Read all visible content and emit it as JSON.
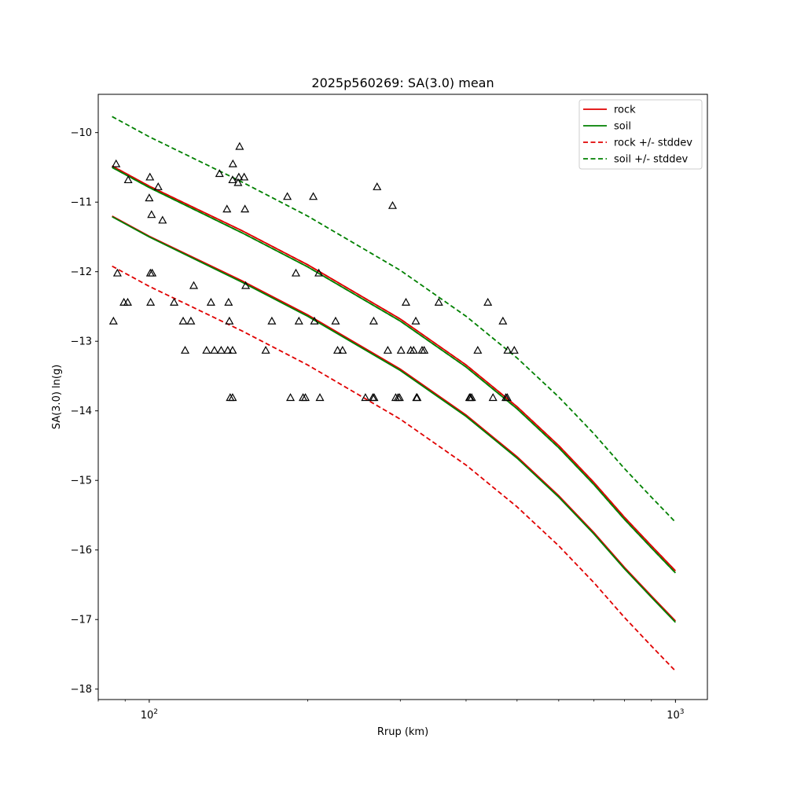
{
  "chart_data": {
    "type": "scatter",
    "title": "2025p560269: SA(3.0) mean",
    "xlabel": "Rrup (km)",
    "ylabel": "SA(3.0) ln(g)",
    "xscale": "log",
    "xlim": [
      80,
      1150
    ],
    "ylim": [
      -18.15,
      -9.45
    ],
    "yticks": [
      -10,
      -11,
      -12,
      -13,
      -14,
      -15,
      -16,
      -17,
      -18
    ],
    "xticks_major": [
      {
        "value": 100,
        "base": "10",
        "exp": "2"
      },
      {
        "value": 1000,
        "base": "10",
        "exp": "3"
      }
    ],
    "legend_position": "upper right",
    "colors": {
      "rock": "#e00000",
      "soil": "#008000",
      "points": "#000000"
    },
    "curves": [
      {
        "label": "rock",
        "style": "solid",
        "color": "#e00000",
        "x": [
          85,
          100,
          150,
          200,
          300,
          400,
          500,
          600,
          700,
          800,
          900,
          1000
        ],
        "y": [
          -11.2,
          -11.49,
          -12.13,
          -12.62,
          -13.4,
          -14.06,
          -14.66,
          -15.22,
          -15.75,
          -16.25,
          -16.66,
          -17.02
        ]
      },
      {
        "label": "soil",
        "style": "solid",
        "color": "#008000",
        "x": [
          85,
          100,
          150,
          200,
          300,
          400,
          500,
          600,
          700,
          800,
          900,
          1000
        ],
        "y": [
          -11.21,
          -11.5,
          -12.15,
          -12.64,
          -13.42,
          -14.08,
          -14.68,
          -15.24,
          -15.77,
          -16.27,
          -16.68,
          -17.04
        ]
      },
      {
        "label": "rock +/- stddev",
        "style": "dashed",
        "color": "#e00000",
        "x": [
          85,
          100,
          150,
          200,
          300,
          400,
          500,
          600,
          700,
          800,
          900,
          1000
        ],
        "y": [
          -10.48,
          -10.77,
          -11.41,
          -11.9,
          -12.68,
          -13.34,
          -13.94,
          -14.5,
          -15.03,
          -15.53,
          -15.94,
          -16.3
        ]
      },
      {
        "label": "",
        "style": "dashed",
        "color": "#e00000",
        "x": [
          85,
          100,
          150,
          200,
          300,
          400,
          500,
          600,
          700,
          800,
          900,
          1000
        ],
        "y": [
          -11.92,
          -12.21,
          -12.85,
          -13.34,
          -14.12,
          -14.78,
          -15.38,
          -15.94,
          -16.47,
          -16.97,
          -17.38,
          -17.74
        ]
      },
      {
        "label": "soil +/- stddev",
        "style": "dashed",
        "color": "#008000",
        "x": [
          85,
          100,
          150,
          200,
          300,
          400,
          500,
          600,
          700,
          800,
          900,
          1000
        ],
        "y": [
          -9.77,
          -10.06,
          -10.71,
          -11.2,
          -11.98,
          -12.64,
          -13.24,
          -13.8,
          -14.33,
          -14.83,
          -15.24,
          -15.6
        ]
      },
      {
        "label": "",
        "style": "dashed",
        "color": "#008000",
        "x": [
          85,
          100,
          150,
          200,
          300,
          400,
          500,
          600,
          700,
          800,
          900,
          1000
        ],
        "y": [
          -10.5,
          -10.79,
          -11.44,
          -11.93,
          -12.71,
          -13.37,
          -13.97,
          -14.53,
          -15.06,
          -15.56,
          -15.97,
          -16.33
        ]
      },
      {
        "label": "",
        "style": "solid",
        "color": "#e00000",
        "x": [
          85,
          100,
          150,
          200,
          300,
          400,
          500,
          600,
          700,
          800,
          900,
          1000
        ],
        "y": [
          -10.48,
          -10.77,
          -11.41,
          -11.9,
          -12.68,
          -13.34,
          -13.94,
          -14.5,
          -15.03,
          -15.53,
          -15.94,
          -16.3
        ]
      },
      {
        "label": "",
        "style": "solid",
        "color": "#008000",
        "x": [
          85,
          100,
          150,
          200,
          300,
          400,
          500,
          600,
          700,
          800,
          900,
          1000
        ],
        "y": [
          -10.5,
          -10.79,
          -11.44,
          -11.93,
          -12.71,
          -13.37,
          -13.97,
          -14.53,
          -15.06,
          -15.56,
          -15.97,
          -16.33
        ]
      }
    ],
    "legend": [
      {
        "label": "rock",
        "color": "#e00000",
        "style": "solid"
      },
      {
        "label": "soil",
        "color": "#008000",
        "style": "solid"
      },
      {
        "label": "rock +/- stddev",
        "color": "#e00000",
        "style": "dashed"
      },
      {
        "label": "soil +/- stddev",
        "color": "#008000",
        "style": "dashed"
      }
    ],
    "points": [
      [
        85.5,
        -12.71
      ],
      [
        86.5,
        -10.45
      ],
      [
        87,
        -12.02
      ],
      [
        89.5,
        -12.44
      ],
      [
        91,
        -12.44
      ],
      [
        91.2,
        -10.68
      ],
      [
        100,
        -10.94
      ],
      [
        100.3,
        -10.64
      ],
      [
        100.5,
        -12.02
      ],
      [
        100.6,
        -12.44
      ],
      [
        101,
        -11.18
      ],
      [
        101.3,
        -12.02
      ],
      [
        104,
        -10.78
      ],
      [
        106,
        -11.26
      ],
      [
        111.5,
        -12.44
      ],
      [
        116,
        -12.71
      ],
      [
        117,
        -13.13
      ],
      [
        120,
        -12.71
      ],
      [
        121.5,
        -12.2
      ],
      [
        128.5,
        -13.13
      ],
      [
        131,
        -12.44
      ],
      [
        133,
        -13.13
      ],
      [
        136,
        -10.59
      ],
      [
        137,
        -13.13
      ],
      [
        140.5,
        -11.1
      ],
      [
        141,
        -13.13
      ],
      [
        141.5,
        -12.44
      ],
      [
        142,
        -12.71
      ],
      [
        142.5,
        -13.81
      ],
      [
        144,
        -13.13
      ],
      [
        144,
        -13.81
      ],
      [
        144,
        -10.68
      ],
      [
        144.2,
        -10.45
      ],
      [
        147.5,
        -10.72
      ],
      [
        148,
        -10.64
      ],
      [
        148.5,
        -10.2
      ],
      [
        151.5,
        -10.64
      ],
      [
        152,
        -11.1
      ],
      [
        152.5,
        -12.2
      ],
      [
        166.5,
        -13.13
      ],
      [
        171,
        -12.71
      ],
      [
        183,
        -10.92
      ],
      [
        185.5,
        -13.81
      ],
      [
        190,
        -12.02
      ],
      [
        192.5,
        -12.71
      ],
      [
        196,
        -13.81
      ],
      [
        198,
        -13.81
      ],
      [
        205,
        -10.92
      ],
      [
        206,
        -12.71
      ],
      [
        210,
        -12.02
      ],
      [
        211,
        -13.81
      ],
      [
        226,
        -12.71
      ],
      [
        228,
        -13.13
      ],
      [
        233,
        -13.13
      ],
      [
        257.5,
        -13.81
      ],
      [
        266,
        -13.81
      ],
      [
        267,
        -12.71
      ],
      [
        267.5,
        -13.81
      ],
      [
        271,
        -10.78
      ],
      [
        284,
        -13.13
      ],
      [
        290,
        -11.05
      ],
      [
        294,
        -13.81
      ],
      [
        297,
        -13.81
      ],
      [
        299,
        -13.81
      ],
      [
        301,
        -13.13
      ],
      [
        307.5,
        -12.44
      ],
      [
        314,
        -13.13
      ],
      [
        318,
        -13.13
      ],
      [
        321,
        -12.71
      ],
      [
        322,
        -13.81
      ],
      [
        323,
        -13.81
      ],
      [
        330,
        -13.13
      ],
      [
        333,
        -13.13
      ],
      [
        355,
        -12.44
      ],
      [
        406,
        -13.81
      ],
      [
        407.5,
        -13.81
      ],
      [
        410,
        -13.81
      ],
      [
        421,
        -13.13
      ],
      [
        440,
        -12.44
      ],
      [
        450,
        -13.81
      ],
      [
        470,
        -12.71
      ],
      [
        476,
        -13.81
      ],
      [
        479,
        -13.81
      ],
      [
        480,
        -13.13
      ],
      [
        494,
        -13.13
      ]
    ]
  }
}
